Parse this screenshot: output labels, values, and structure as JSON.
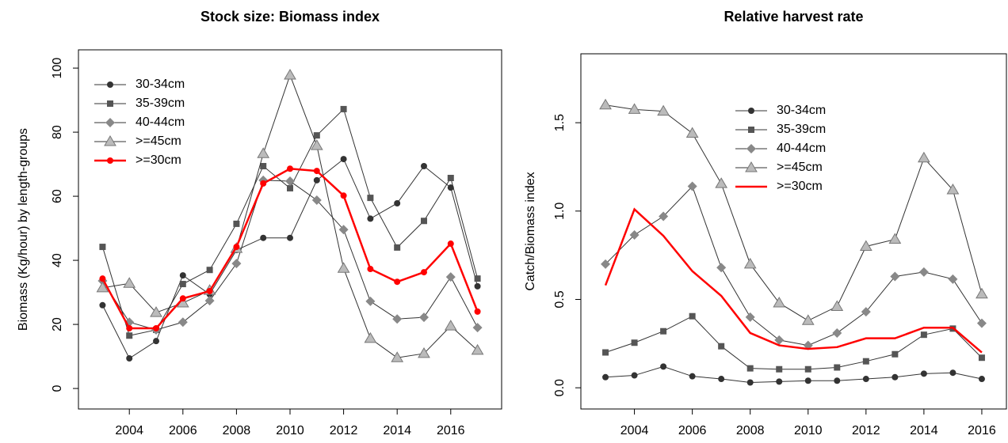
{
  "chart_data": [
    {
      "type": "line",
      "title": "Stock size: Biomass index",
      "ylabel": "Biomass (Kg/hour) by length-groups",
      "x": [
        2003,
        2004,
        2005,
        2006,
        2007,
        2008,
        2009,
        2010,
        2011,
        2012,
        2013,
        2014,
        2015,
        2016,
        2017
      ],
      "xlim": [
        2002.1,
        2017.9
      ],
      "xticks": [
        2004,
        2006,
        2008,
        2010,
        2012,
        2014,
        2016
      ],
      "ylim": [
        -6.4,
        105.7
      ],
      "yticks": [
        0,
        20,
        40,
        60,
        80,
        100
      ],
      "legend": "top-left",
      "series": [
        {
          "name": "30-34cm",
          "color": "#333333",
          "marker": "circle",
          "marker_color": "#333333",
          "values": [
            26,
            9.4,
            14.8,
            35.3,
            29.4,
            43.2,
            47,
            47,
            65,
            71.6,
            53,
            57.8,
            69.4,
            62.7,
            31.9
          ]
        },
        {
          "name": "35-39cm",
          "color": "#333333",
          "marker": "square",
          "marker_color": "#555555",
          "values": [
            44.2,
            16.5,
            18.3,
            32.6,
            37,
            51.4,
            69.4,
            62.5,
            79,
            87.2,
            59.5,
            44,
            52.3,
            65.7,
            34.3
          ]
        },
        {
          "name": "40-44cm",
          "color": "#333333",
          "marker": "diamond",
          "marker_color": "#888888",
          "values": [
            33.6,
            20.7,
            18.3,
            20.7,
            27.4,
            39,
            65,
            64.7,
            58.8,
            49.6,
            27.2,
            21.7,
            22.2,
            34.8,
            19
          ]
        },
        {
          "name": ">=45cm",
          "color": "#333333",
          "marker": "triangle",
          "marker_color": "#bbbbbb",
          "values": [
            31.4,
            32.8,
            23.7,
            26.7,
            30.6,
            43.7,
            73.3,
            97.8,
            75.8,
            37.5,
            15.6,
            9.6,
            10.9,
            19.5,
            11.9
          ]
        },
        {
          "name": ">=30cm",
          "color": "#ff0000",
          "marker": "circle",
          "marker_color": "#ff0000",
          "values": [
            34.3,
            18.8,
            18.8,
            28.1,
            30.4,
            44.2,
            64,
            68.6,
            67.9,
            60.2,
            37.3,
            33.3,
            36.3,
            45.2,
            24
          ]
        }
      ]
    },
    {
      "type": "line",
      "title": "Relative harvest rate",
      "ylabel": "Catch/Biomass index",
      "x": [
        2003,
        2004,
        2005,
        2006,
        2007,
        2008,
        2009,
        2010,
        2011,
        2012,
        2013,
        2014,
        2015,
        2016
      ],
      "xlim": [
        2002.15,
        2016.85
      ],
      "xticks": [
        2004,
        2006,
        2008,
        2010,
        2012,
        2014,
        2016
      ],
      "ylim": [
        -0.12,
        1.89
      ],
      "yticks": [
        {
          "value": 0,
          "label": "0.0"
        },
        {
          "value": 0.5,
          "label": "0.5"
        },
        {
          "value": 1,
          "label": "1.0"
        },
        {
          "value": 1.5,
          "label": "1.5"
        }
      ],
      "legend": "top-center",
      "series": [
        {
          "name": "30-34cm",
          "color": "#333333",
          "marker": "circle",
          "marker_color": "#333333",
          "values": [
            0.06,
            0.07,
            0.12,
            0.065,
            0.05,
            0.03,
            0.035,
            0.04,
            0.04,
            0.05,
            0.06,
            0.08,
            0.085,
            0.05
          ]
        },
        {
          "name": "35-39cm",
          "color": "#333333",
          "marker": "square",
          "marker_color": "#555555",
          "values": [
            0.2,
            0.255,
            0.32,
            0.405,
            0.235,
            0.11,
            0.105,
            0.105,
            0.115,
            0.15,
            0.19,
            0.3,
            0.335,
            0.17
          ]
        },
        {
          "name": "40-44cm",
          "color": "#333333",
          "marker": "diamond",
          "marker_color": "#888888",
          "values": [
            0.7,
            0.865,
            0.97,
            1.14,
            0.68,
            0.4,
            0.27,
            0.24,
            0.31,
            0.43,
            0.63,
            0.655,
            0.615,
            0.365
          ]
        },
        {
          "name": ">=45cm",
          "color": "#333333",
          "marker": "triangle",
          "marker_color": "#bbbbbb",
          "values": [
            1.6,
            1.575,
            1.565,
            1.44,
            1.155,
            0.7,
            0.48,
            0.38,
            0.46,
            0.8,
            0.84,
            1.3,
            1.12,
            0.53
          ]
        },
        {
          "name": ">=30cm",
          "color": "#ff0000",
          "marker": "none",
          "marker_color": "#ff0000",
          "values": [
            0.58,
            1.01,
            0.86,
            0.66,
            0.52,
            0.31,
            0.24,
            0.22,
            0.23,
            0.28,
            0.28,
            0.34,
            0.34,
            0.2
          ]
        }
      ]
    }
  ]
}
